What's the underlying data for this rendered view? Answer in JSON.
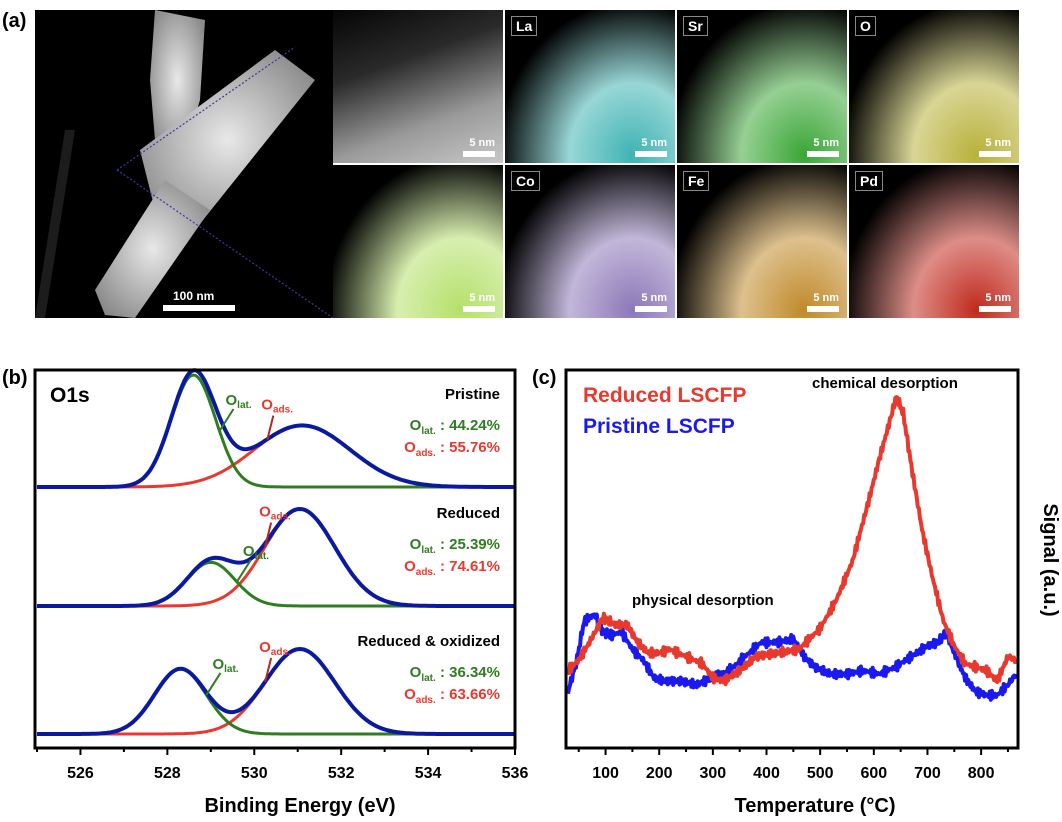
{
  "panels": {
    "a": {
      "label": "(a)",
      "overview_scalebar": "100 nm",
      "maps": [
        {
          "element": "",
          "scalebar": "5 nm",
          "kind": "haadf",
          "color": "#cfcfcf"
        },
        {
          "element": "La",
          "scalebar": "5 nm",
          "kind": "map",
          "color": "#3fb3b3"
        },
        {
          "element": "Sr",
          "scalebar": "5 nm",
          "kind": "map",
          "color": "#3aa636"
        },
        {
          "element": "O",
          "scalebar": "5 nm",
          "kind": "map",
          "color": "#b8b13a"
        },
        {
          "element": "",
          "scalebar": "5 nm",
          "kind": "overlay",
          "color": "#b5e06a"
        },
        {
          "element": "Co",
          "scalebar": "5 nm",
          "kind": "map",
          "color": "#8c78b8"
        },
        {
          "element": "Fe",
          "scalebar": "5 nm",
          "kind": "map",
          "color": "#c08a2a"
        },
        {
          "element": "Pd",
          "scalebar": "5 nm",
          "kind": "map",
          "color": "#c02a1e"
        }
      ]
    },
    "b": {
      "label": "(b)"
    },
    "c": {
      "label": "(c)"
    }
  },
  "chart_data": [
    {
      "type": "line",
      "title": "O1s",
      "xlabel": "Binding Energy (eV)",
      "ylabel": "",
      "xlim": [
        525,
        536
      ],
      "xticks": [
        526,
        528,
        530,
        532,
        534,
        536
      ],
      "colors": {
        "envelope": "#0a1aa0",
        "lattice": "#2e7d1e",
        "adsorbed": "#e8392e",
        "text_green": "#2e7d1e",
        "text_red": "#e8392e"
      },
      "stacks": [
        {
          "name": "Pristine",
          "lattice_peak_eV": 528.6,
          "lattice_height": 1.0,
          "lattice_fwhm": 1.2,
          "adsorbed_peak_eV": 531.1,
          "adsorbed_height": 0.55,
          "adsorbed_fwhm": 2.6,
          "O_lat_pct": "44.24%",
          "O_ads_pct": "55.76%"
        },
        {
          "name": "Reduced",
          "lattice_peak_eV": 529.0,
          "lattice_height": 0.45,
          "lattice_fwhm": 1.3,
          "adsorbed_peak_eV": 531.05,
          "adsorbed_height": 1.0,
          "adsorbed_fwhm": 1.9,
          "O_lat_pct": "25.39%",
          "O_ads_pct": "74.61%"
        },
        {
          "name": "Reduced & oxidized",
          "lattice_peak_eV": 528.3,
          "lattice_height": 0.65,
          "lattice_fwhm": 1.4,
          "adsorbed_peak_eV": 531.05,
          "adsorbed_height": 0.85,
          "adsorbed_fwhm": 1.9,
          "O_lat_pct": "36.34%",
          "O_ads_pct": "63.66%"
        }
      ],
      "labels": {
        "O_lat_main": "O",
        "O_lat_sub": "lat.",
        "O_ads_main": "O",
        "O_ads_sub": "ads.",
        "sep": " : "
      }
    },
    {
      "type": "line",
      "title": "",
      "xlabel": "Temperature (°C)",
      "ylabel": "Signal (a.u.)",
      "xlim": [
        30,
        865
      ],
      "xticks": [
        100,
        200,
        300,
        400,
        500,
        600,
        700,
        800
      ],
      "legend": "top-left",
      "annotations": [
        "chemical desorption",
        "physical desorption"
      ],
      "series": [
        {
          "name": "Reduced LSCFP",
          "color": "#e8392e",
          "x": [
            30,
            50,
            70,
            95,
            120,
            140,
            160,
            180,
            200,
            220,
            250,
            280,
            300,
            320,
            350,
            380,
            420,
            460,
            500,
            530,
            560,
            590,
            610,
            630,
            642,
            655,
            670,
            690,
            710,
            730,
            750,
            770,
            790,
            810,
            830,
            850,
            865
          ],
          "y": [
            0.22,
            0.25,
            0.3,
            0.37,
            0.35,
            0.35,
            0.3,
            0.27,
            0.27,
            0.28,
            0.26,
            0.24,
            0.2,
            0.19,
            0.22,
            0.26,
            0.27,
            0.28,
            0.34,
            0.42,
            0.53,
            0.7,
            0.82,
            0.93,
            1.0,
            0.95,
            0.8,
            0.62,
            0.48,
            0.36,
            0.29,
            0.24,
            0.23,
            0.22,
            0.19,
            0.26,
            0.25
          ]
        },
        {
          "name": "Pristine LSCFP",
          "color": "#1a1aee",
          "x": [
            30,
            45,
            60,
            80,
            95,
            110,
            130,
            150,
            170,
            190,
            210,
            240,
            270,
            300,
            330,
            360,
            390,
            420,
            450,
            470,
            490,
            520,
            550,
            580,
            610,
            640,
            670,
            700,
            720,
            735,
            750,
            770,
            790,
            810,
            830,
            850,
            865
          ],
          "y": [
            0.16,
            0.24,
            0.36,
            0.38,
            0.33,
            0.32,
            0.33,
            0.28,
            0.25,
            0.2,
            0.19,
            0.19,
            0.18,
            0.2,
            0.22,
            0.26,
            0.3,
            0.3,
            0.31,
            0.26,
            0.23,
            0.21,
            0.21,
            0.22,
            0.21,
            0.23,
            0.26,
            0.29,
            0.3,
            0.33,
            0.27,
            0.2,
            0.16,
            0.15,
            0.15,
            0.18,
            0.21
          ]
        }
      ]
    }
  ]
}
